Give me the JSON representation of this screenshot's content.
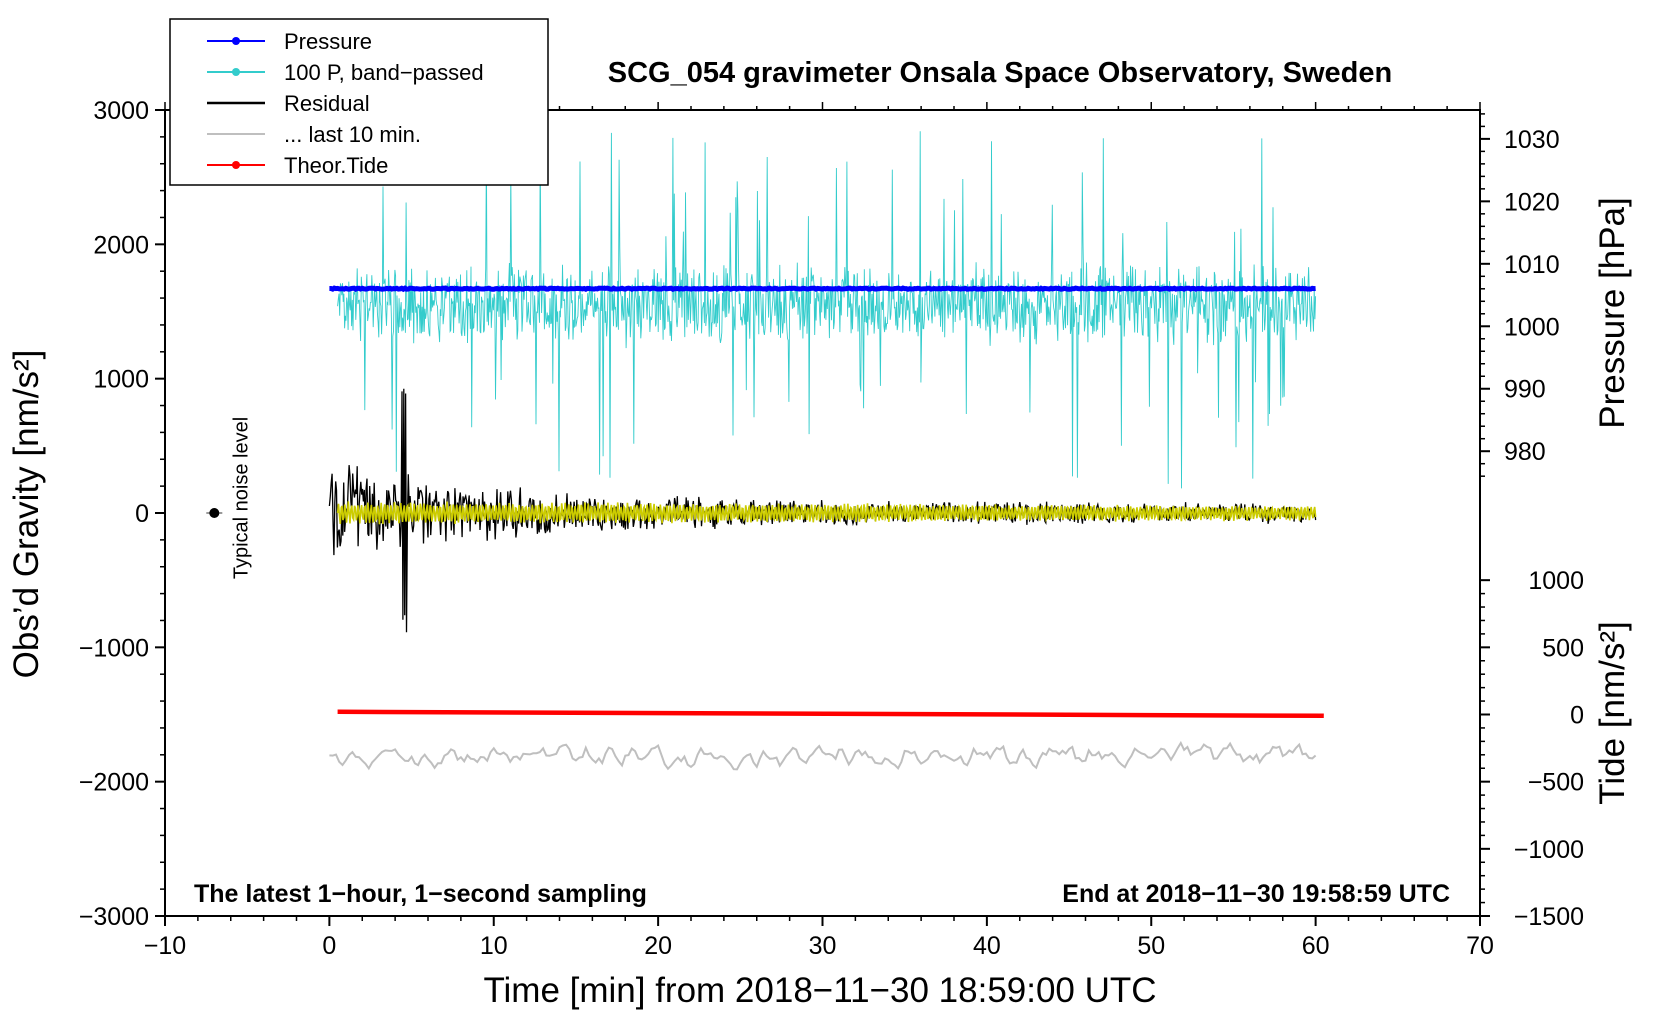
{
  "chart_data": {
    "type": "line",
    "title": "SCG_054 gravimeter Onsala Space Observatory, Sweden",
    "xlabel": "Time [min] from 2018−11−30 18:59:00 UTC",
    "ylabel_left": "Obs’d Gravity [nm/s²]",
    "ylabel_right_pressure": "Pressure [hPa]",
    "ylabel_right_tide": "Tide [nm/s²]",
    "xlim": [
      -10,
      70
    ],
    "ylim": [
      -3000,
      3000
    ],
    "x_ticks": [
      -10,
      0,
      10,
      20,
      30,
      40,
      50,
      60,
      70
    ],
    "x_tick_labels": [
      "−10",
      "0",
      "10",
      "20",
      "30",
      "40",
      "50",
      "60",
      "70"
    ],
    "y_ticks": [
      3000,
      2000,
      1000,
      0,
      -1000,
      -2000,
      -3000
    ],
    "y_tick_labels": [
      "3000",
      "2000",
      "1000",
      "0",
      "−1000",
      "−2000",
      "−3000"
    ],
    "pressure_axis": {
      "ticks": [
        1030,
        1020,
        1010,
        1000,
        990,
        980
      ],
      "tick_labels": [
        "1030",
        "1020",
        "1010",
        "1000",
        "990",
        "980"
      ],
      "gravity_at_1000": 1390,
      "gravity_per_hpa": 46.5
    },
    "tide_axis": {
      "ticks": [
        1000,
        500,
        0,
        -500,
        -1000,
        -1500
      ],
      "tick_labels": [
        "1000",
        "500",
        "0",
        "−500",
        "−1000",
        "−1500"
      ],
      "gravity_at_0": -1500,
      "gravity_per_unit": 1.0
    },
    "legend": [
      {
        "label": "Pressure",
        "color": "#0000ff",
        "marker": true
      },
      {
        "label": "100 P, band−passed",
        "color": "#33cccc",
        "marker": true
      },
      {
        "label": "Residual",
        "color": "#000000",
        "marker": false
      },
      {
        "label": "... last 10 min.",
        "color": "#bfbfbf",
        "marker": false
      },
      {
        "label": "Theor.Tide",
        "color": "#ff0000",
        "marker": true
      }
    ],
    "series": [
      {
        "name": "Pressure",
        "color": "#0000ff",
        "x_range": [
          0,
          60
        ],
        "level_gravity": 1670,
        "level_hpa": 1006.3,
        "jitter": 8
      },
      {
        "name": "100 P, band−passed",
        "color": "#33cccc",
        "x_range": [
          0.5,
          60
        ],
        "center": 1550,
        "spread": 330,
        "spike_top": 2870,
        "spike_bottom": 170
      },
      {
        "name": "Residual",
        "color": "#000000",
        "x_range": [
          0,
          60
        ],
        "center": 0,
        "amp_start": 420,
        "amp_end": 80,
        "max": 1010,
        "min": -920
      },
      {
        "name": "Residual (yellow-filtered)",
        "color": "#cccc00",
        "x_range": [
          0.5,
          60
        ],
        "center": 0,
        "amp": 90
      },
      {
        "name": "... last 10 min.",
        "color": "#bfbfbf",
        "x_range": [
          0,
          60
        ],
        "center": -1810,
        "amp": 70
      },
      {
        "name": "Theor.Tide",
        "color": "#ff0000",
        "x_range": [
          0.5,
          60.5
        ],
        "start_gravity": -1480,
        "end_gravity": -1510
      }
    ],
    "noise_level": {
      "x": -7,
      "y": 0,
      "label": "Typical noise level"
    },
    "annotations": {
      "bottom_left": "The latest 1−hour, 1−second sampling",
      "bottom_right": "End at 2018−11−30 19:58:59 UTC"
    }
  }
}
